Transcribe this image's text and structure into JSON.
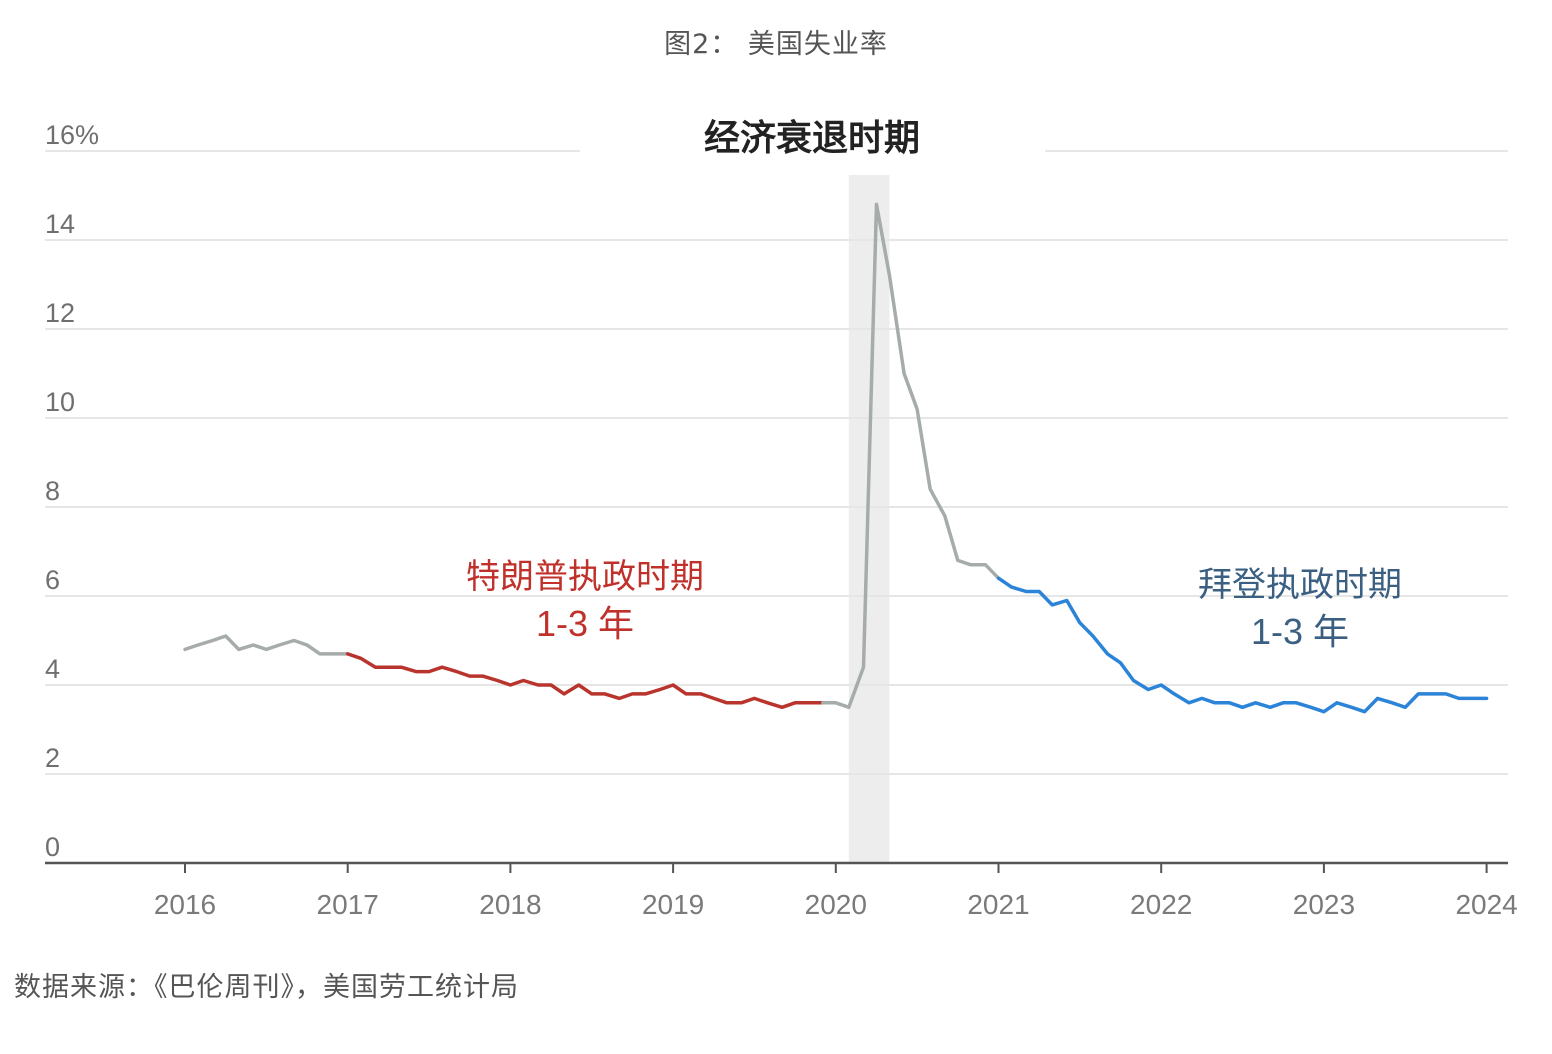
{
  "figure_caption": "图2： 美国失业率",
  "source_note": "数据来源：《巴伦周刊》，美国劳工统计局",
  "colors": {
    "gray_segment": "#a6acaa",
    "trump_segment": "#b8342c",
    "biden_segment": "#2b84d8",
    "recession_band": "#ededed",
    "trump_label": "#c0312b",
    "biden_label": "#3a5f80",
    "grid": "#e6e6e6",
    "axis": "#555555"
  },
  "chart_data": {
    "type": "line",
    "title": "",
    "xlabel": "",
    "ylabel": "",
    "xlim": [
      2015.13,
      2024.2
    ],
    "ylim": [
      0,
      16
    ],
    "y_ticks": [
      0,
      2,
      4,
      6,
      8,
      10,
      12,
      14,
      16
    ],
    "y_tick_labels": [
      "0",
      "2",
      "4",
      "6",
      "8",
      "10",
      "12",
      "14",
      "16%"
    ],
    "x_ticks": [
      2016,
      2017,
      2018,
      2019,
      2020,
      2021,
      2022,
      2023,
      2024
    ],
    "x_tick_labels": [
      "2016",
      "2017",
      "2018",
      "2019",
      "2020",
      "2021",
      "2022",
      "2023",
      "2024"
    ],
    "grid": "horizontal",
    "shaded_period": {
      "label": "经济衰退时期",
      "x_start": 2020.08,
      "x_end": 2020.33
    },
    "annotations": [
      {
        "line1": "特朗普执政时期",
        "line2": "1-3 年",
        "color_key": "trump_label"
      },
      {
        "line1": "拜登执政时期",
        "line2": "1-3 年",
        "color_key": "biden_label"
      }
    ],
    "series": [
      {
        "color_key": "gray_segment",
        "points": [
          [
            2016.0,
            4.8
          ],
          [
            2016.08,
            4.9
          ],
          [
            2016.17,
            5.0
          ],
          [
            2016.25,
            5.1
          ],
          [
            2016.33,
            4.8
          ],
          [
            2016.42,
            4.9
          ],
          [
            2016.5,
            4.8
          ],
          [
            2016.58,
            4.9
          ],
          [
            2016.67,
            5.0
          ],
          [
            2016.75,
            4.9
          ],
          [
            2016.83,
            4.7
          ],
          [
            2016.92,
            4.7
          ],
          [
            2017.0,
            4.7
          ]
        ]
      },
      {
        "color_key": "trump_segment",
        "points": [
          [
            2017.0,
            4.7
          ],
          [
            2017.08,
            4.6
          ],
          [
            2017.17,
            4.4
          ],
          [
            2017.25,
            4.4
          ],
          [
            2017.33,
            4.4
          ],
          [
            2017.42,
            4.3
          ],
          [
            2017.5,
            4.3
          ],
          [
            2017.58,
            4.4
          ],
          [
            2017.67,
            4.3
          ],
          [
            2017.75,
            4.2
          ],
          [
            2017.83,
            4.2
          ],
          [
            2017.92,
            4.1
          ],
          [
            2018.0,
            4.0
          ],
          [
            2018.08,
            4.1
          ],
          [
            2018.17,
            4.0
          ],
          [
            2018.25,
            4.0
          ],
          [
            2018.33,
            3.8
          ],
          [
            2018.42,
            4.0
          ],
          [
            2018.5,
            3.8
          ],
          [
            2018.58,
            3.8
          ],
          [
            2018.67,
            3.7
          ],
          [
            2018.75,
            3.8
          ],
          [
            2018.83,
            3.8
          ],
          [
            2018.92,
            3.9
          ],
          [
            2019.0,
            4.0
          ],
          [
            2019.08,
            3.8
          ],
          [
            2019.17,
            3.8
          ],
          [
            2019.25,
            3.7
          ],
          [
            2019.33,
            3.6
          ],
          [
            2019.42,
            3.6
          ],
          [
            2019.5,
            3.7
          ],
          [
            2019.58,
            3.6
          ],
          [
            2019.67,
            3.5
          ],
          [
            2019.75,
            3.6
          ],
          [
            2019.83,
            3.6
          ],
          [
            2019.92,
            3.6
          ]
        ]
      },
      {
        "color_key": "gray_segment",
        "points": [
          [
            2019.92,
            3.6
          ],
          [
            2020.0,
            3.6
          ],
          [
            2020.08,
            3.5
          ],
          [
            2020.17,
            4.4
          ],
          [
            2020.25,
            14.8
          ],
          [
            2020.33,
            13.2
          ],
          [
            2020.42,
            11.0
          ],
          [
            2020.5,
            10.2
          ],
          [
            2020.58,
            8.4
          ],
          [
            2020.67,
            7.8
          ],
          [
            2020.75,
            6.8
          ],
          [
            2020.83,
            6.7
          ],
          [
            2020.92,
            6.7
          ],
          [
            2021.0,
            6.4
          ]
        ]
      },
      {
        "color_key": "biden_segment",
        "points": [
          [
            2021.0,
            6.4
          ],
          [
            2021.08,
            6.2
          ],
          [
            2021.17,
            6.1
          ],
          [
            2021.25,
            6.1
          ],
          [
            2021.33,
            5.8
          ],
          [
            2021.42,
            5.9
          ],
          [
            2021.5,
            5.4
          ],
          [
            2021.58,
            5.1
          ],
          [
            2021.67,
            4.7
          ],
          [
            2021.75,
            4.5
          ],
          [
            2021.83,
            4.1
          ],
          [
            2021.92,
            3.9
          ],
          [
            2022.0,
            4.0
          ],
          [
            2022.08,
            3.8
          ],
          [
            2022.17,
            3.6
          ],
          [
            2022.25,
            3.7
          ],
          [
            2022.33,
            3.6
          ],
          [
            2022.42,
            3.6
          ],
          [
            2022.5,
            3.5
          ],
          [
            2022.58,
            3.6
          ],
          [
            2022.67,
            3.5
          ],
          [
            2022.75,
            3.6
          ],
          [
            2022.83,
            3.6
          ],
          [
            2022.92,
            3.5
          ],
          [
            2023.0,
            3.4
          ],
          [
            2023.08,
            3.6
          ],
          [
            2023.17,
            3.5
          ],
          [
            2023.25,
            3.4
          ],
          [
            2023.33,
            3.7
          ],
          [
            2023.42,
            3.6
          ],
          [
            2023.5,
            3.5
          ],
          [
            2023.58,
            3.8
          ],
          [
            2023.67,
            3.8
          ],
          [
            2023.75,
            3.8
          ],
          [
            2023.83,
            3.7
          ],
          [
            2023.92,
            3.7
          ],
          [
            2024.0,
            3.7
          ]
        ]
      }
    ]
  }
}
